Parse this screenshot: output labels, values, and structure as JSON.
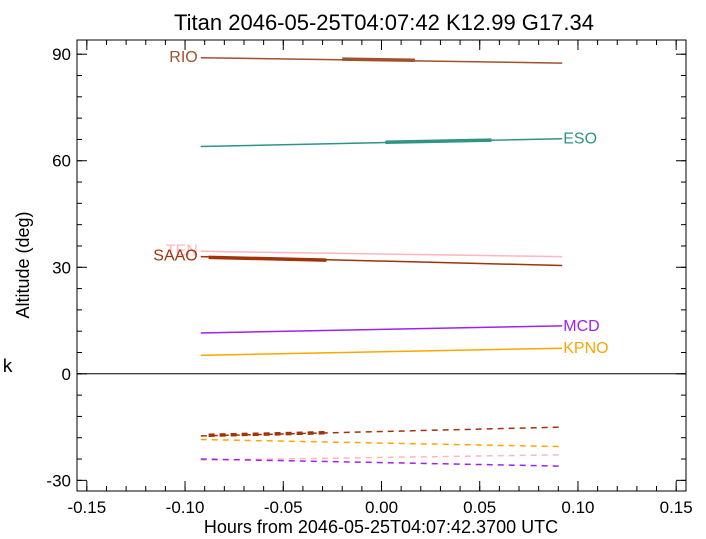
{
  "side_mark": "k",
  "chart_data": {
    "type": "line",
    "title": "Titan 2046-05-25T04:07:42  K12.99  G17.34",
    "xlabel": "Hours from 2046-05-25T04:07:42.3700 UTC",
    "ylabel": "Altitude (deg)",
    "xlim": [
      -0.155,
      0.155
    ],
    "ylim": [
      -33,
      94
    ],
    "xticks": [
      -0.15,
      -0.1,
      -0.05,
      0.0,
      0.05,
      0.1,
      0.15
    ],
    "xtick_labels": [
      "-0.15",
      "-0.10",
      "-0.05",
      "0.00",
      "0.05",
      "0.10",
      "0.15"
    ],
    "yticks": [
      -30,
      0,
      30,
      60,
      90
    ],
    "ytick_labels": [
      "-30",
      "0",
      "30",
      "60",
      "90"
    ],
    "zero_line": true,
    "grid": false,
    "series": [
      {
        "name": "RIO",
        "color": "#a0522d",
        "label_side": "left",
        "x": [
          -0.092,
          0.092
        ],
        "y": [
          89.0,
          87.5
        ],
        "bold_x": [
          -0.02,
          0.017
        ],
        "bold_y": [
          88.6,
          88.3
        ]
      },
      {
        "name": "ESO",
        "color": "#2e9486",
        "label_side": "right",
        "x": [
          -0.092,
          0.092
        ],
        "y": [
          64.0,
          66.2
        ],
        "bold_x": [
          0.002,
          0.056
        ],
        "bold_y": [
          65.2,
          65.8
        ]
      },
      {
        "name": "TEN",
        "color": "#ffb6c1",
        "label_side": "left",
        "x": [
          -0.092,
          0.092
        ],
        "y": [
          34.5,
          33.0
        ],
        "night_x": [
          -0.092,
          0.092
        ],
        "night_y": [
          -24.3,
          -22.8
        ]
      },
      {
        "name": "SAAO",
        "color": "#a0330a",
        "label_side": "left",
        "x": [
          -0.092,
          0.092
        ],
        "y": [
          33.0,
          30.5
        ],
        "bold_x": [
          -0.088,
          -0.028
        ],
        "bold_y": [
          32.8,
          32.0
        ],
        "night_x": [
          -0.092,
          0.092
        ],
        "night_y": [
          -17.5,
          -15.0
        ],
        "night_bold_x": [
          -0.088,
          -0.028
        ],
        "night_bold_y": [
          -17.3,
          -16.6
        ]
      },
      {
        "name": "MCD",
        "color": "#a020f0",
        "label_side": "right",
        "x": [
          -0.092,
          0.092
        ],
        "y": [
          11.5,
          13.5
        ],
        "night_x": [
          -0.092,
          0.092
        ],
        "night_y": [
          -24.0,
          -26.0
        ]
      },
      {
        "name": "KPNO",
        "color": "#ffa500",
        "label_side": "right",
        "x": [
          -0.092,
          0.092
        ],
        "y": [
          5.2,
          7.2
        ],
        "night_x": [
          -0.092,
          0.092
        ],
        "night_y": [
          -18.5,
          -20.5
        ]
      }
    ]
  }
}
